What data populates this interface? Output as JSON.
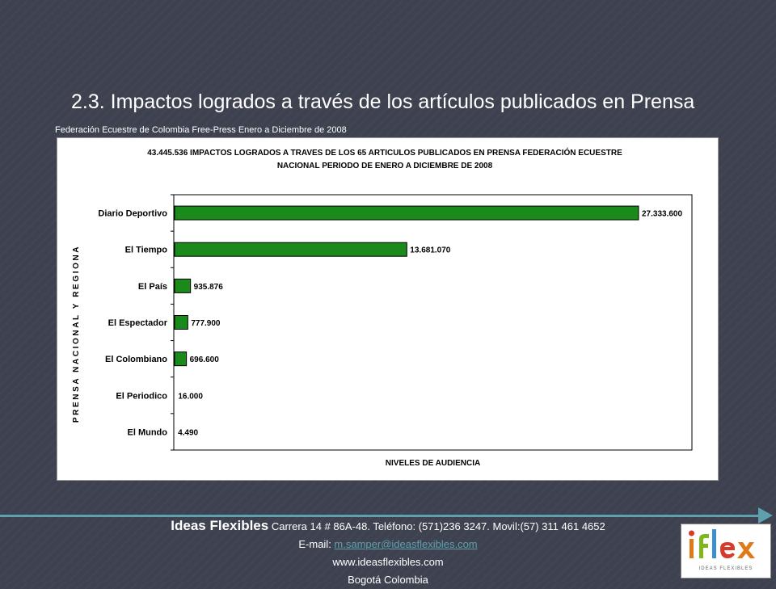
{
  "slide": {
    "title": "2.3. Impactos logrados a través de los artículos publicados en Prensa",
    "subtitle": "Federación Ecuestre de Colombia Free-Press Enero a Diciembre de 2008"
  },
  "chart_data": {
    "type": "bar",
    "orientation": "horizontal",
    "title_lines": [
      "43.445.536 IMPACTOS LOGRADOS A TRAVES DE LOS 65 ARTICULOS PUBLICADOS EN PRENSA FEDERACIÓN ECUESTRE",
      "NACIONAL PERIODO DE ENERO A DICIEMBRE DE 2008"
    ],
    "xlabel": "NIVELES DE AUDIENCIA",
    "ylabel": "PRENSA NACIONAL Y REGIONA",
    "categories": [
      "Diario Deportivo",
      "El Tiempo",
      "El País",
      "El Espectador",
      "El Colombiano",
      "El Periodico",
      "El Mundo"
    ],
    "values": [
      27333600,
      13681070,
      935876,
      777900,
      696600,
      16000,
      4490
    ],
    "value_labels": [
      "27.333.600",
      "13.681.070",
      "935.876",
      "777.900",
      "696.600",
      "16.000",
      "4.490"
    ],
    "xlim": [
      0,
      27333600
    ],
    "grid": false,
    "bar_color": "#1a8a1a"
  },
  "footer": {
    "company": "Ideas Flexibles",
    "address": " Carrera 14 # 86A-48. Teléfono: (571)236 3247. Movil:(57) 311 461 4652",
    "email_label": "E-mail: ",
    "email": "m.samper@ideasflexibles.com",
    "website": "www.ideasflexibles.com",
    "city": "Bogotá Colombia"
  },
  "logo": {
    "text": "iflex",
    "tagline": "IDEAS FLEXIBLES"
  }
}
